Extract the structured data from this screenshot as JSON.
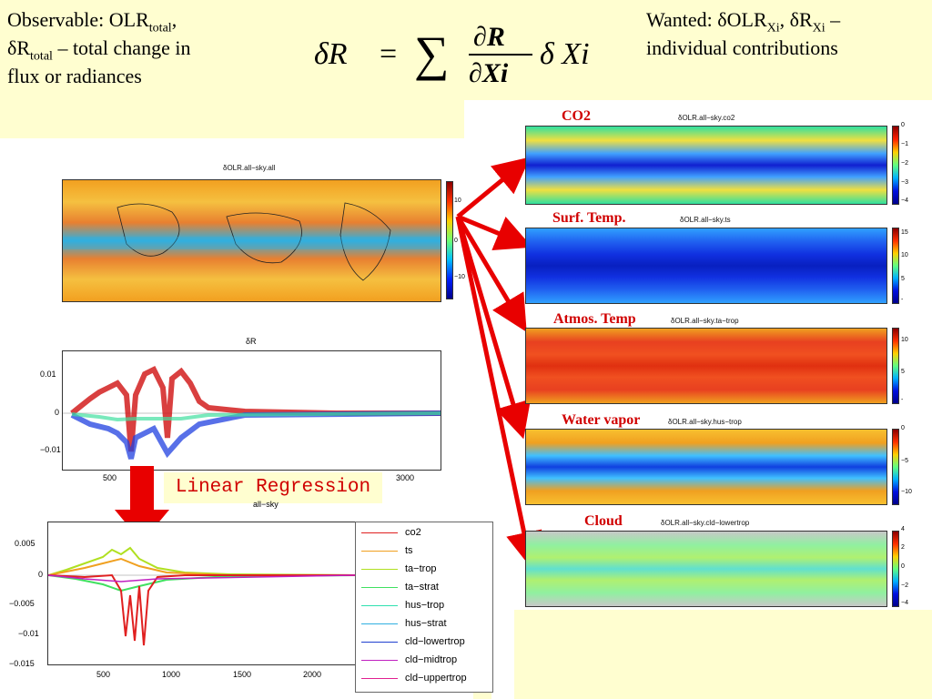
{
  "header": {
    "observable_line1_pre": "Observable: OLR",
    "observable_line1_sub": "total",
    "observable_line1_post": ",",
    "observable_line2_pre": "δR",
    "observable_line2_sub": "total",
    "observable_line2_post": " – total change in",
    "observable_line3": "flux or radiances",
    "wanted_pre": "Wanted: δOLR",
    "wanted_sub1": "Xi",
    "wanted_mid": ", δR",
    "wanted_sub2": "Xi",
    "wanted_post": " –",
    "wanted_line2": "individual contributions"
  },
  "equation": {
    "lhs": "δR",
    "eq": "=",
    "sum": "∑",
    "num": "∂R",
    "den": "∂Xi",
    "rhs": "δ Xi"
  },
  "total_map": {
    "title": "δOLR.all−sky.all",
    "colorbar_ticks": [
      "10",
      "0",
      "−10"
    ]
  },
  "dR_plot": {
    "title": "δR",
    "y_ticks": [
      "0.01",
      "0",
      "−0.01"
    ],
    "x_ticks": [
      "500",
      "3000"
    ]
  },
  "regression_label": "Linear Regression",
  "bottom_plot": {
    "title": "all−sky",
    "y_ticks": [
      "0.005",
      "0",
      "−0.005",
      "−0.01",
      "−0.015"
    ],
    "x_ticks": [
      "500",
      "1000",
      "1500",
      "2000"
    ],
    "legend": [
      {
        "name": "co2",
        "color": "#e02020"
      },
      {
        "name": "ts",
        "color": "#f0a020"
      },
      {
        "name": "ta−trop",
        "color": "#b0e020"
      },
      {
        "name": "ta−strat",
        "color": "#40e060"
      },
      {
        "name": "hus−trop",
        "color": "#30e0b0"
      },
      {
        "name": "hus−strat",
        "color": "#30b0e0"
      },
      {
        "name": "cld−lowertrop",
        "color": "#2040d0"
      },
      {
        "name": "cld−midtrop",
        "color": "#c020c0"
      },
      {
        "name": "cld−uppertrop",
        "color": "#e02090"
      }
    ]
  },
  "component_maps": [
    {
      "label": "CO2",
      "title": "δOLR.all−sky.co2",
      "ticks": [
        "0",
        "−1",
        "−2",
        "−3",
        "−4"
      ]
    },
    {
      "label": "Surf. Temp.",
      "title": "δOLR.all−sky.ts",
      "ticks": [
        "15",
        "10",
        "5",
        "-"
      ]
    },
    {
      "label": "Atmos. Temp",
      "title": "δOLR.all−sky.ta−trop",
      "ticks": [
        "10",
        "5",
        "-"
      ]
    },
    {
      "label": "Water vapor",
      "title": "δOLR.all−sky.hus−trop",
      "ticks": [
        "0",
        "−5",
        "−10"
      ]
    },
    {
      "label": "Cloud",
      "title": "δOLR.all−sky.cld−lowertrop",
      "ticks": [
        "4",
        "2",
        "0",
        "−2",
        "−4"
      ]
    }
  ],
  "colors": {
    "background": "#fffed0",
    "arrow": "#e80000",
    "label": "#d00000"
  }
}
